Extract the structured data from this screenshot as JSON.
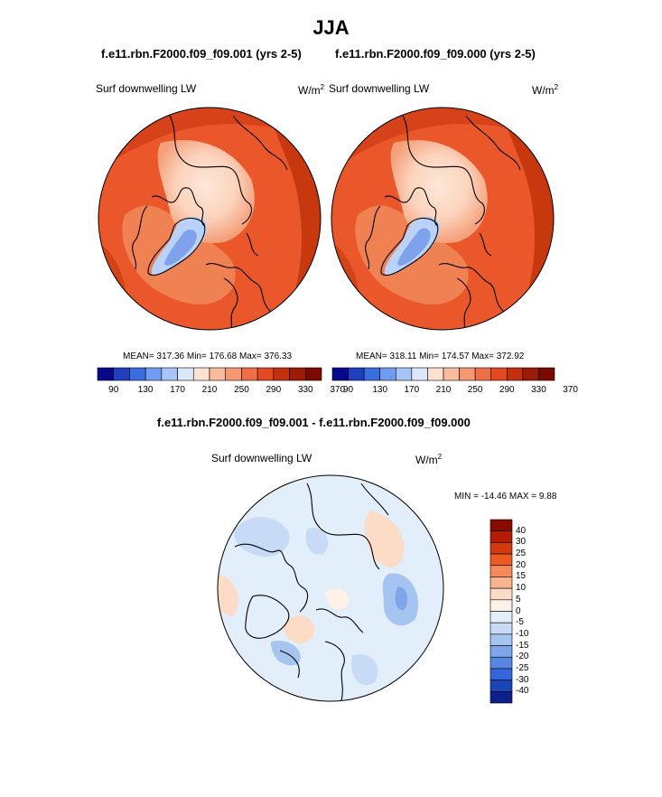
{
  "figure": {
    "title": "JJA"
  },
  "panels": [
    {
      "run_title": "f.e11.rbn.F2000.f09_f09.001 (yrs 2-5)",
      "variable": "Surf downwelling LW",
      "units_base": "W/m",
      "units_exp": "2",
      "stats": "MEAN= 317.36  Min= 176.68  Max= 376.33"
    },
    {
      "run_title": "f.e11.rbn.F2000.f09_f09.000 (yrs 2-5)",
      "variable": "Surf downwelling LW",
      "units_base": "W/m",
      "units_exp": "2",
      "stats": "MEAN= 318.11  Min= 174.57  Max= 372.92"
    }
  ],
  "diff_panel": {
    "title": "f.e11.rbn.F2000.f09_f09.001 - f.e11.rbn.F2000.f09_f09.000",
    "variable": "Surf downwelling LW",
    "units_base": "W/m",
    "units_exp": "2",
    "stats": "MIN = -14.46 MAX =   9.88"
  },
  "colorbar_main": {
    "colors": [
      "#08088c",
      "#1f3fbf",
      "#3a6ee0",
      "#6f9bf0",
      "#a6c4f5",
      "#dbe8fb",
      "#fde2d2",
      "#f9bd9e",
      "#f59872",
      "#ee6f47",
      "#e34a22",
      "#c5300c",
      "#9c1b04",
      "#7a0a00"
    ],
    "labels": [
      "90",
      "130",
      "170",
      "210",
      "250",
      "290",
      "330",
      "370"
    ]
  },
  "colorbar_diff": {
    "colors": [
      "#8a0a00",
      "#b51c04",
      "#d43a0e",
      "#ec5a22",
      "#f58a5c",
      "#f9b38f",
      "#fcdcc6",
      "#fdf1e8",
      "#e3eefb",
      "#c7dbf6",
      "#a6c4f0",
      "#7ea6ea",
      "#5786e3",
      "#3466d9",
      "#1a44b8",
      "#0c1f8a"
    ],
    "labels": [
      "40",
      "30",
      "25",
      "20",
      "15",
      "10",
      "5",
      "0",
      "-5",
      "-10",
      "-15",
      "-20",
      "-25",
      "-30",
      "-40"
    ]
  },
  "chart_data": [
    {
      "type": "heatmap",
      "title": "f.e11.rbn.F2000.f09_f09.001 (yrs 2-5)",
      "projection": "north polar stereographic",
      "variable": "Surf downwelling LW",
      "units": "W/m2",
      "mean": 317.36,
      "min": 176.68,
      "max": 376.33,
      "levels": [
        90,
        110,
        130,
        150,
        170,
        190,
        210,
        230,
        250,
        270,
        290,
        310,
        330,
        350,
        370
      ]
    },
    {
      "type": "heatmap",
      "title": "f.e11.rbn.F2000.f09_f09.000 (yrs 2-5)",
      "projection": "north polar stereographic",
      "variable": "Surf downwelling LW",
      "units": "W/m2",
      "mean": 318.11,
      "min": 174.57,
      "max": 372.92,
      "levels": [
        90,
        110,
        130,
        150,
        170,
        190,
        210,
        230,
        250,
        270,
        290,
        310,
        330,
        350,
        370
      ]
    },
    {
      "type": "heatmap",
      "title": "f.e11.rbn.F2000.f09_f09.001 - f.e11.rbn.F2000.f09_f09.000",
      "projection": "north polar stereographic",
      "variable": "Surf downwelling LW",
      "units": "W/m2",
      "min": -14.46,
      "max": 9.88,
      "levels": [
        -40,
        -30,
        -25,
        -20,
        -15,
        -10,
        -5,
        0,
        5,
        10,
        15,
        20,
        25,
        30,
        40
      ]
    }
  ]
}
